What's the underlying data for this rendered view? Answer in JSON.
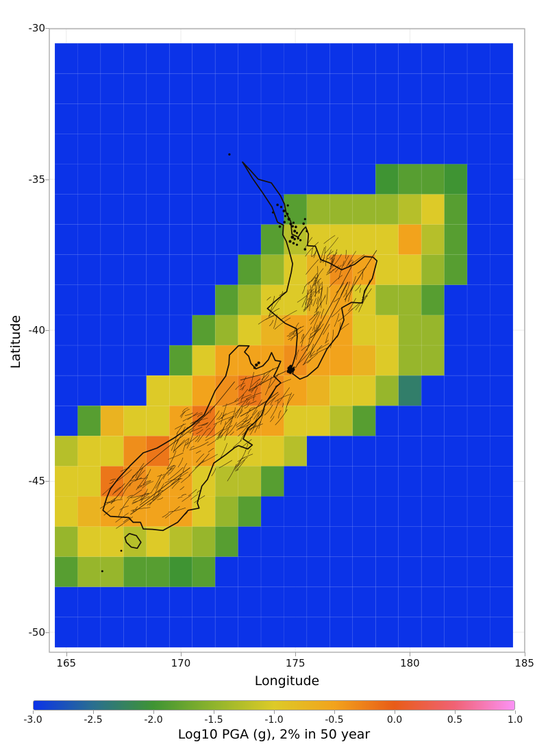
{
  "figure": {
    "xlabel": "Longitude",
    "ylabel": "Latitude",
    "colorbar_label": "Log10 PGA (g), 2% in 50 year"
  },
  "chart_data": {
    "type": "heatmap",
    "title": "",
    "xlabel": "Longitude",
    "ylabel": "Latitude",
    "colorbar_label": "Log10 PGA (g), 2% in 50 year",
    "x_range": [
      164.26,
      185.01
    ],
    "y_range": [
      -50.66,
      -30.02
    ],
    "xtick_values": [
      165,
      170,
      175,
      180,
      185
    ],
    "xtick_labels": [
      "165",
      "170",
      "175",
      "180",
      "185"
    ],
    "ytick_values": [
      -30,
      -35,
      -40,
      -45,
      -50
    ],
    "ytick_labels": [
      "-30",
      "-35",
      "-40",
      "-45",
      "-50"
    ],
    "colorbar_range": [
      -3,
      1
    ],
    "colorbar_tick_values": [
      -3.0,
      -2.5,
      -2.0,
      -1.5,
      -1.0,
      -0.5,
      0.0,
      0.5,
      1.0
    ],
    "colorbar_tick_labels": [
      "-3.0",
      "-2.5",
      "-2.0",
      "-1.5",
      "-1.0",
      "-0.5",
      "0.0",
      "0.5",
      "1.0"
    ],
    "colormap_stops": [
      [
        -3.0,
        "#0b33e8"
      ],
      [
        -2.5,
        "#2a6f8f"
      ],
      [
        -2.0,
        "#3f9433"
      ],
      [
        -1.5,
        "#8fb42c"
      ],
      [
        -1.0,
        "#ddca28"
      ],
      [
        -0.5,
        "#f2a31c"
      ],
      [
        0.0,
        "#e85c18"
      ],
      [
        0.5,
        "#f06274"
      ],
      [
        1.0,
        "#fb92f5"
      ]
    ],
    "grid_origin": {
      "lon": 164.5,
      "lat": -30.5
    },
    "cell_size_deg": 1,
    "ocean_value": -3,
    "values": [
      [
        -3,
        -3,
        -3,
        -3,
        -3,
        -3,
        -3,
        -3,
        -3,
        -3,
        -3,
        -3,
        -3,
        -3,
        -3,
        -3,
        -3,
        -3,
        -3,
        -3
      ],
      [
        -3,
        -3,
        -3,
        -3,
        -3,
        -3,
        -3,
        -3,
        -3,
        -3,
        -3,
        -3,
        -3,
        -3,
        -3,
        -3,
        -3,
        -3,
        -3,
        -3
      ],
      [
        -3,
        -3,
        -3,
        -3,
        -3,
        -3,
        -3,
        -3,
        -3,
        -3,
        -3,
        -3,
        -3,
        -3,
        -3,
        -3,
        -3,
        -3,
        -3,
        -3
      ],
      [
        -3,
        -3,
        -3,
        -3,
        -3,
        -3,
        -3,
        -3,
        -3,
        -3,
        -3,
        -3,
        -3,
        -3,
        -3,
        -3,
        -3,
        -3,
        -3,
        -3
      ],
      [
        -3,
        -3,
        -3,
        -3,
        -3,
        -3,
        -3,
        -3,
        -3,
        -3,
        -3,
        -3,
        -3,
        -3,
        -2,
        -1.85,
        -1.85,
        -2,
        -3,
        -3
      ],
      [
        -3,
        -3,
        -3,
        -3,
        -3,
        -3,
        -3,
        -3,
        -3,
        -3,
        -1.85,
        -1.45,
        -1.45,
        -1.45,
        -1.45,
        -1.25,
        -1,
        -1.85,
        -3,
        -3
      ],
      [
        -3,
        -3,
        -3,
        -3,
        -3,
        -3,
        -3,
        -3,
        -3,
        -1.85,
        -1.25,
        -1,
        -1,
        -1,
        -1,
        -0.5,
        -1.25,
        -1.85,
        -3,
        -3
      ],
      [
        -3,
        -3,
        -3,
        -3,
        -3,
        -3,
        -3,
        -3,
        -1.85,
        -1.45,
        -1,
        -0.7,
        -0.35,
        -0.5,
        -1,
        -1,
        -1.45,
        -1.85,
        -3,
        -3
      ],
      [
        -3,
        -3,
        -3,
        -3,
        -3,
        -3,
        -3,
        -1.85,
        -1.45,
        -1,
        -1,
        -0.7,
        -0.5,
        -1,
        -1.45,
        -1.45,
        -1.85,
        -3,
        -3,
        -3
      ],
      [
        -3,
        -3,
        -3,
        -3,
        -3,
        -3,
        -1.85,
        -1.45,
        -1,
        -0.7,
        -0.5,
        -0.5,
        -0.5,
        -1,
        -1,
        -1.45,
        -1.45,
        -3,
        -3,
        -3
      ],
      [
        -3,
        -3,
        -3,
        -3,
        -3,
        -1.85,
        -1,
        -0.5,
        -0.5,
        -0.5,
        -0.35,
        -0.5,
        -0.5,
        -0.7,
        -1,
        -1.45,
        -1.45,
        -3,
        -3,
        -3
      ],
      [
        -3,
        -3,
        -3,
        -3,
        -1,
        -1,
        -0.5,
        -0.35,
        -0.18,
        -0.35,
        -0.5,
        -0.7,
        -1,
        -1,
        -1.45,
        -2.3,
        -3,
        -3,
        -3,
        -3
      ],
      [
        -3,
        -1.85,
        -0.7,
        -1,
        -1,
        -0.5,
        -0.18,
        -0.5,
        -0.5,
        -0.5,
        -1,
        -1,
        -1.25,
        -1.85,
        -3,
        -3,
        -3,
        -3,
        -3,
        -3
      ],
      [
        -1.25,
        -1,
        -1,
        -0.35,
        -0.18,
        -0.5,
        -0.5,
        -1,
        -1,
        -1,
        -1.25,
        -3,
        -3,
        -3,
        -3,
        -3,
        -3,
        -3,
        -3,
        -3
      ],
      [
        -1,
        -1,
        -0.18,
        -0.35,
        -0.5,
        -0.5,
        -1,
        -1.25,
        -1.25,
        -1.85,
        -3,
        -3,
        -3,
        -3,
        -3,
        -3,
        -3,
        -3,
        -3,
        -3
      ],
      [
        -1,
        -0.7,
        -0.5,
        -0.5,
        -0.5,
        -0.5,
        -1,
        -1.45,
        -1.85,
        -3,
        -3,
        -3,
        -3,
        -3,
        -3,
        -3,
        -3,
        -3,
        -3,
        -3
      ],
      [
        -1.45,
        -1,
        -1,
        -1.25,
        -1,
        -1.25,
        -1.45,
        -1.85,
        -3,
        -3,
        -3,
        -3,
        -3,
        -3,
        -3,
        -3,
        -3,
        -3,
        -3,
        -3
      ],
      [
        -1.85,
        -1.45,
        -1.45,
        -1.85,
        -1.85,
        -2,
        -1.85,
        -3,
        -3,
        -3,
        -3,
        -3,
        -3,
        -3,
        -3,
        -3,
        -3,
        -3,
        -3,
        -3
      ],
      [
        -3,
        -3,
        -3,
        -3,
        -3,
        -3,
        -3,
        -3,
        -3,
        -3,
        -3,
        -3,
        -3,
        -3,
        -3,
        -3,
        -3,
        -3,
        -3,
        -3
      ],
      [
        -3,
        -3,
        -3,
        -3,
        -3,
        -3,
        -3,
        -3,
        -3,
        -3,
        -3,
        -3,
        -3,
        -3,
        -3,
        -3,
        -3,
        -3,
        -3,
        -3
      ]
    ],
    "coastlines": {
      "north_island": [
        [
          172.68,
          -34.42
        ],
        [
          173.05,
          -34.72
        ],
        [
          173.38,
          -35.0
        ],
        [
          173.95,
          -35.12
        ],
        [
          174.35,
          -35.55
        ],
        [
          174.52,
          -35.82
        ],
        [
          174.6,
          -36.12
        ],
        [
          174.8,
          -36.4
        ],
        [
          174.85,
          -36.82
        ],
        [
          175.12,
          -36.92
        ],
        [
          175.33,
          -36.68
        ],
        [
          175.45,
          -36.58
        ],
        [
          175.57,
          -36.82
        ],
        [
          175.53,
          -37.2
        ],
        [
          175.88,
          -37.22
        ],
        [
          176.1,
          -37.66
        ],
        [
          176.48,
          -37.77
        ],
        [
          177.02,
          -38.0
        ],
        [
          177.58,
          -37.82
        ],
        [
          178.02,
          -37.56
        ],
        [
          178.38,
          -37.58
        ],
        [
          178.56,
          -37.7
        ],
        [
          178.36,
          -38.28
        ],
        [
          178.02,
          -38.7
        ],
        [
          177.92,
          -39.1
        ],
        [
          177.45,
          -39.08
        ],
        [
          177.02,
          -39.26
        ],
        [
          177.12,
          -39.66
        ],
        [
          176.86,
          -40.16
        ],
        [
          176.38,
          -40.62
        ],
        [
          175.98,
          -41.22
        ],
        [
          175.52,
          -41.52
        ],
        [
          175.2,
          -41.62
        ],
        [
          174.88,
          -41.44
        ],
        [
          174.95,
          -41.22
        ],
        [
          174.8,
          -41.32
        ],
        [
          174.92,
          -41.05
        ],
        [
          175.02,
          -40.78
        ],
        [
          175.08,
          -40.2
        ],
        [
          175.05,
          -39.95
        ],
        [
          174.55,
          -39.77
        ],
        [
          173.78,
          -39.28
        ],
        [
          174.1,
          -39.05
        ],
        [
          174.62,
          -38.72
        ],
        [
          174.82,
          -38.08
        ],
        [
          174.88,
          -37.8
        ],
        [
          174.73,
          -37.38
        ],
        [
          174.6,
          -37.05
        ],
        [
          174.45,
          -36.84
        ],
        [
          174.48,
          -36.52
        ],
        [
          174.22,
          -36.42
        ],
        [
          173.98,
          -35.92
        ],
        [
          173.58,
          -35.46
        ],
        [
          173.12,
          -34.96
        ],
        [
          172.8,
          -34.56
        ],
        [
          172.68,
          -34.42
        ]
      ],
      "south_island": [
        [
          172.52,
          -40.51
        ],
        [
          172.98,
          -40.52
        ],
        [
          172.78,
          -40.72
        ],
        [
          172.96,
          -40.86
        ],
        [
          173.06,
          -41.1
        ],
        [
          173.28,
          -41.28
        ],
        [
          173.58,
          -41.18
        ],
        [
          173.82,
          -40.98
        ],
        [
          173.96,
          -40.74
        ],
        [
          174.12,
          -41.0
        ],
        [
          174.36,
          -41.03
        ],
        [
          174.18,
          -41.34
        ],
        [
          174.06,
          -41.52
        ],
        [
          174.36,
          -41.74
        ],
        [
          174.16,
          -41.88
        ],
        [
          173.96,
          -42.12
        ],
        [
          173.7,
          -42.42
        ],
        [
          173.52,
          -42.82
        ],
        [
          173.22,
          -43.06
        ],
        [
          172.92,
          -43.25
        ],
        [
          172.72,
          -43.6
        ],
        [
          173.12,
          -43.8
        ],
        [
          172.92,
          -43.93
        ],
        [
          172.52,
          -43.82
        ],
        [
          172.36,
          -43.88
        ],
        [
          171.96,
          -44.12
        ],
        [
          171.44,
          -44.4
        ],
        [
          171.16,
          -44.94
        ],
        [
          170.92,
          -45.16
        ],
        [
          170.72,
          -45.72
        ],
        [
          170.8,
          -45.89
        ],
        [
          170.32,
          -45.96
        ],
        [
          169.86,
          -46.36
        ],
        [
          169.22,
          -46.63
        ],
        [
          168.76,
          -46.59
        ],
        [
          168.36,
          -46.58
        ],
        [
          168.24,
          -46.36
        ],
        [
          167.92,
          -46.36
        ],
        [
          167.72,
          -46.2
        ],
        [
          166.92,
          -46.16
        ],
        [
          166.6,
          -45.96
        ],
        [
          166.76,
          -45.56
        ],
        [
          166.92,
          -45.26
        ],
        [
          167.26,
          -44.92
        ],
        [
          167.82,
          -44.46
        ],
        [
          168.36,
          -44.06
        ],
        [
          168.96,
          -43.9
        ],
        [
          169.72,
          -43.56
        ],
        [
          170.46,
          -43.16
        ],
        [
          171.02,
          -42.8
        ],
        [
          171.24,
          -42.44
        ],
        [
          171.5,
          -42.0
        ],
        [
          171.96,
          -41.52
        ],
        [
          172.1,
          -41.12
        ],
        [
          172.12,
          -40.82
        ],
        [
          172.52,
          -40.51
        ]
      ],
      "stewart_island": [
        [
          167.75,
          -46.73
        ],
        [
          168.06,
          -46.8
        ],
        [
          168.26,
          -47.02
        ],
        [
          168.1,
          -47.22
        ],
        [
          167.84,
          -47.18
        ],
        [
          167.62,
          -47.02
        ],
        [
          167.56,
          -46.86
        ],
        [
          167.75,
          -46.73
        ]
      ]
    },
    "point_markers": [
      [
        172.12,
        -34.18,
        1.6
      ],
      [
        174.22,
        -35.85,
        1.8
      ],
      [
        174.38,
        -35.92,
        1.6
      ],
      [
        174.5,
        -36.05,
        2.0
      ],
      [
        174.56,
        -36.22,
        1.6
      ],
      [
        174.65,
        -36.15,
        1.8
      ],
      [
        174.72,
        -36.32,
        2.2
      ],
      [
        174.8,
        -36.48,
        2.0
      ],
      [
        174.88,
        -36.56,
        1.8
      ],
      [
        174.92,
        -36.44,
        1.6
      ],
      [
        175.02,
        -36.58,
        1.8
      ],
      [
        174.97,
        -36.72,
        2.0
      ],
      [
        175.07,
        -36.78,
        1.6
      ],
      [
        174.87,
        -36.92,
        2.4
      ],
      [
        174.97,
        -36.98,
        1.8
      ],
      [
        175.12,
        -36.96,
        1.6
      ],
      [
        174.77,
        -37.06,
        2.0
      ],
      [
        174.92,
        -37.12,
        1.8
      ],
      [
        175.07,
        -37.17,
        1.6
      ],
      [
        175.36,
        -36.47,
        1.8
      ],
      [
        175.42,
        -36.32,
        1.6
      ],
      [
        175.5,
        -36.72,
        1.6
      ],
      [
        174.67,
        -35.87,
        1.6
      ],
      [
        174.32,
        -36.57,
        1.8
      ],
      [
        175.22,
        -37.02,
        1.6
      ],
      [
        175.42,
        -37.32,
        1.8
      ],
      [
        174.52,
        -36.42,
        1.8
      ],
      [
        174.02,
        -36.1,
        1.5
      ],
      [
        166.57,
        -47.98,
        1.5
      ],
      [
        167.4,
        -47.3,
        1.4
      ],
      [
        174.74,
        -41.26,
        3.0
      ],
      [
        174.84,
        -41.32,
        3.2
      ],
      [
        174.7,
        -41.36,
        2.6
      ],
      [
        174.8,
        -41.2,
        2.4
      ],
      [
        174.9,
        -41.3,
        2.6
      ],
      [
        174.78,
        -41.4,
        2.2
      ],
      [
        173.3,
        -41.15,
        2.2
      ],
      [
        173.4,
        -41.08,
        2.0
      ],
      [
        173.22,
        -41.24,
        1.8
      ]
    ],
    "major_faults": [
      [
        [
          166.95,
          -45.75
        ],
        [
          168.1,
          -44.7
        ],
        [
          169.3,
          -43.95
        ],
        [
          170.5,
          -43.25
        ],
        [
          171.55,
          -42.45
        ],
        [
          172.35,
          -41.7
        ]
      ],
      [
        [
          172.6,
          -41.65
        ],
        [
          173.6,
          -41.45
        ],
        [
          174.3,
          -41.2
        ]
      ],
      [
        [
          172.95,
          -42.0
        ],
        [
          174.05,
          -41.55
        ],
        [
          174.6,
          -41.35
        ]
      ],
      [
        [
          172.6,
          -42.85
        ],
        [
          173.55,
          -42.45
        ],
        [
          174.25,
          -42.05
        ]
      ],
      [
        [
          175.0,
          -41.25
        ],
        [
          175.65,
          -40.45
        ],
        [
          176.3,
          -39.5
        ],
        [
          176.95,
          -38.6
        ],
        [
          177.45,
          -37.9
        ]
      ],
      [
        [
          175.35,
          -41.15
        ],
        [
          176.05,
          -40.25
        ],
        [
          176.7,
          -39.3
        ],
        [
          177.3,
          -38.4
        ]
      ],
      [
        [
          177.15,
          -39.0
        ],
        [
          177.95,
          -38.05
        ],
        [
          178.55,
          -37.35
        ]
      ],
      [
        [
          168.2,
          -45.8
        ],
        [
          169.4,
          -45.1
        ],
        [
          170.4,
          -44.55
        ]
      ],
      [
        [
          167.8,
          -46.1
        ],
        [
          169.0,
          -45.45
        ],
        [
          170.0,
          -44.9
        ]
      ]
    ],
    "fault_zones": [
      [
        176.8,
        -38.7,
        1.5,
        1.3,
        55,
        60
      ],
      [
        175.7,
        -40.2,
        0.9,
        0.9,
        35,
        55
      ],
      [
        173.6,
        -42.4,
        1.2,
        1.0,
        45,
        50
      ],
      [
        171.7,
        -43.7,
        1.4,
        1.1,
        50,
        45
      ],
      [
        169.5,
        -45.2,
        1.5,
        1.1,
        48,
        40
      ],
      [
        167.5,
        -45.5,
        0.9,
        0.9,
        30,
        35
      ],
      [
        174.2,
        -39.3,
        0.7,
        0.6,
        12,
        50
      ],
      [
        176.2,
        -37.4,
        0.8,
        0.5,
        15,
        60
      ],
      [
        170.3,
        -43.3,
        0.9,
        0.7,
        25,
        45
      ],
      [
        172.6,
        -43.0,
        0.8,
        0.8,
        30,
        48
      ],
      [
        175.7,
        -38.8,
        0.5,
        0.5,
        20,
        70
      ]
    ],
    "style": {
      "plot_border_color": "#a8a8a8",
      "grid_color": "#ebebeb",
      "cell_edge_color": "rgba(255,255,255,0.10)",
      "coast_color": "#171007",
      "fault_color": "#2e1d06",
      "marker_color": "#0d0a05",
      "tick_color": "#999999"
    }
  }
}
